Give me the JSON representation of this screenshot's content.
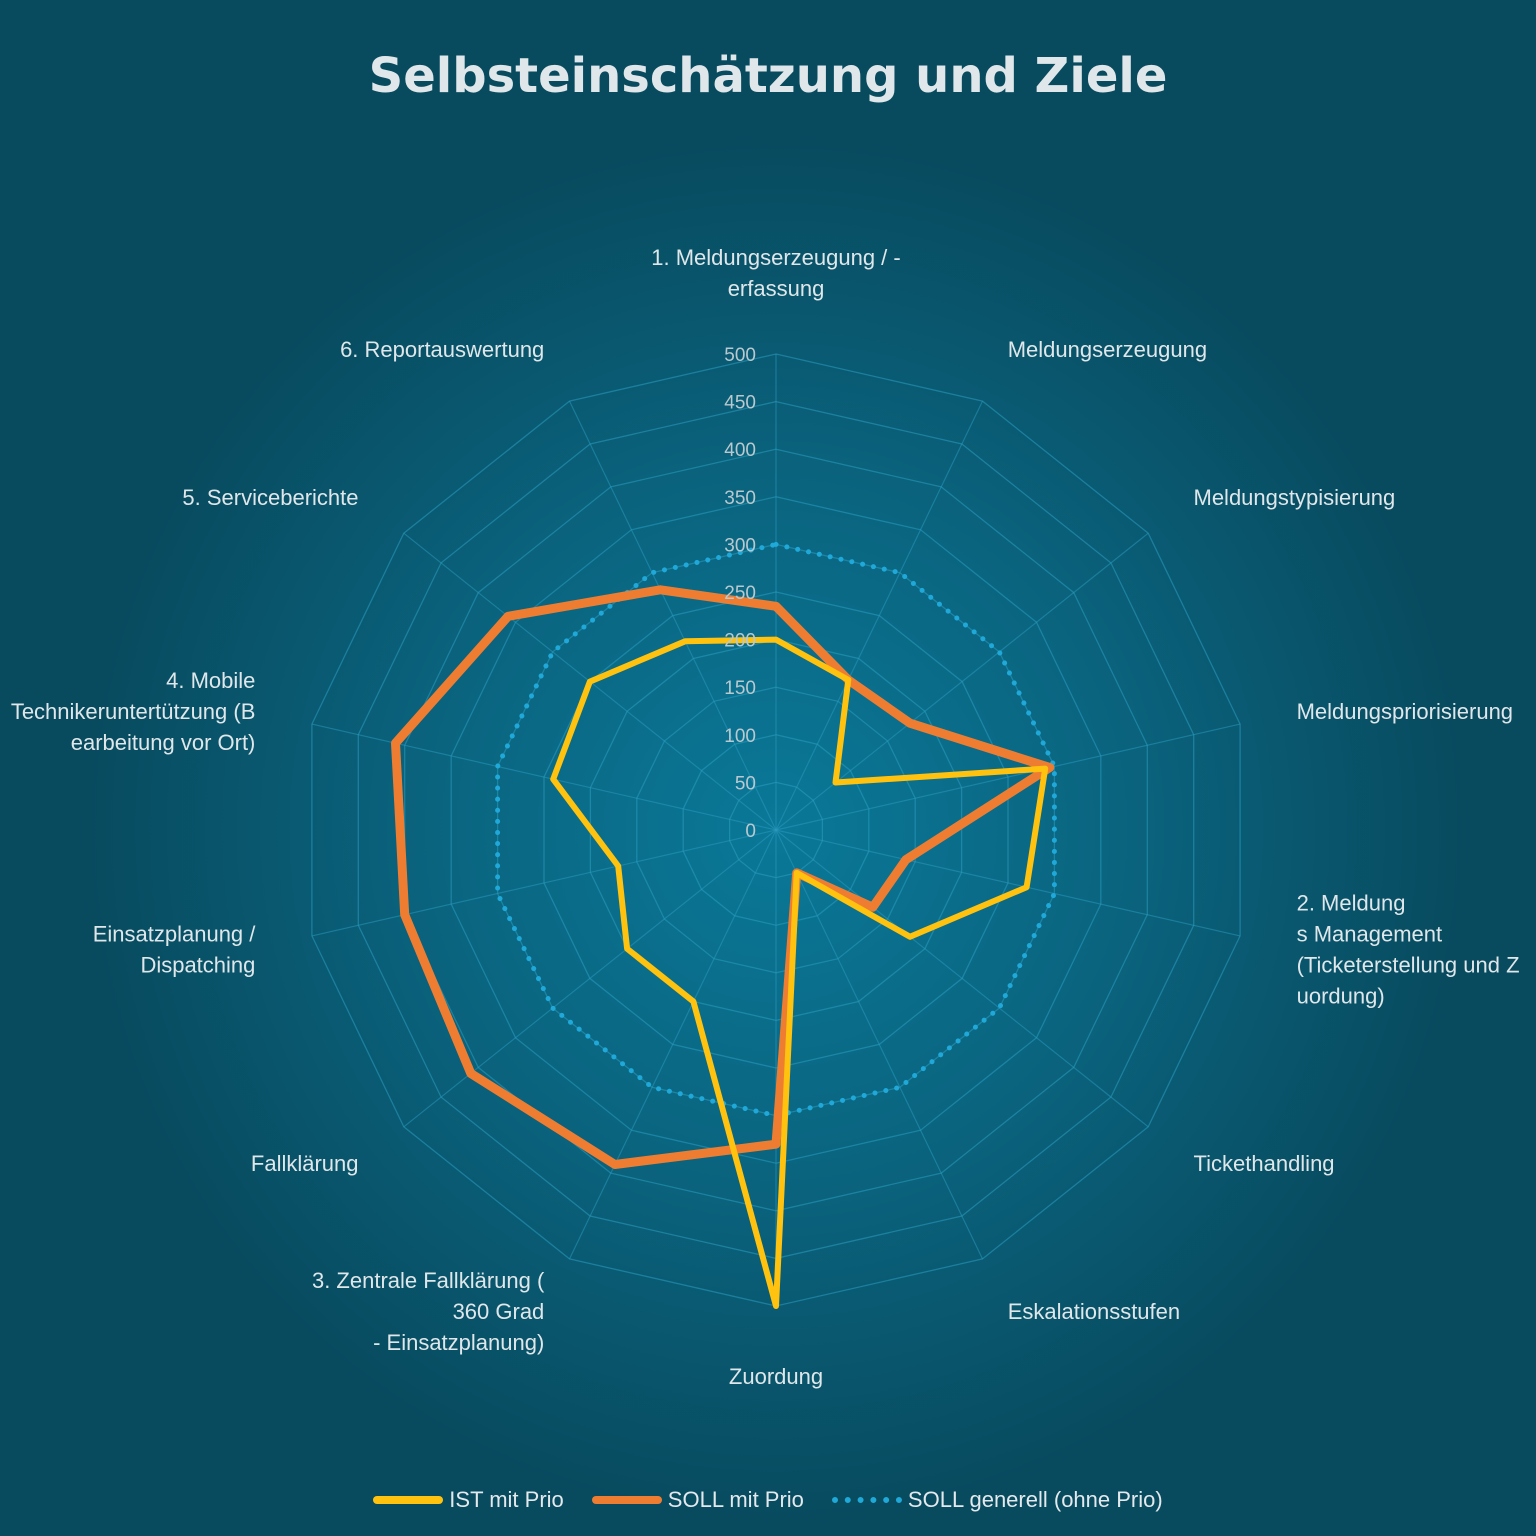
{
  "chart_data": {
    "type": "radar",
    "title": "Selbsteinschätzung und Ziele",
    "categories": [
      "1. Meldungserzeugung / - erfassung",
      "Meldungserzeugung",
      "Meldungstypisierung",
      "Meldungspriorisierung",
      "2. Meldungs Management (Ticketerstellung und Zuordung)",
      "Tickethandling",
      "Eskalationsstufen",
      "Zuordung",
      "3. Zentrale Fallklärung (360 Grad - Einsatzplanung)",
      "Fallklärung",
      "Einsatzplanung / Dispatching",
      "4. Mobile Technikeruntertützung (Bearbeitung vor Ort)",
      "5. Serviceberichte",
      "6. Reportauswertung"
    ],
    "r_ticks": [
      "0",
      "50",
      "100",
      "150",
      "200",
      "250",
      "300",
      "350",
      "400",
      "450",
      "500"
    ],
    "rlim": [
      0,
      500
    ],
    "grid": true,
    "legend_position": "bottom",
    "series": [
      {
        "name": "IST mit Prio",
        "color": "#ffc20e",
        "style": "solid",
        "values": [
          200,
          175,
          80,
          290,
          270,
          180,
          50,
          500,
          200,
          200,
          170,
          240,
          250,
          220
        ]
      },
      {
        "name": "SOLL mit Prio",
        "color": "#ef7d31",
        "style": "solid",
        "values": [
          235,
          175,
          180,
          295,
          140,
          130,
          50,
          330,
          390,
          410,
          400,
          410,
          360,
          280
        ]
      },
      {
        "name": "SOLL generell (ohne Prio)",
        "color": "#1fa8d8",
        "style": "dotted",
        "values": [
          300,
          300,
          300,
          300,
          300,
          300,
          300,
          300,
          300,
          300,
          300,
          300,
          300,
          300
        ]
      }
    ]
  }
}
